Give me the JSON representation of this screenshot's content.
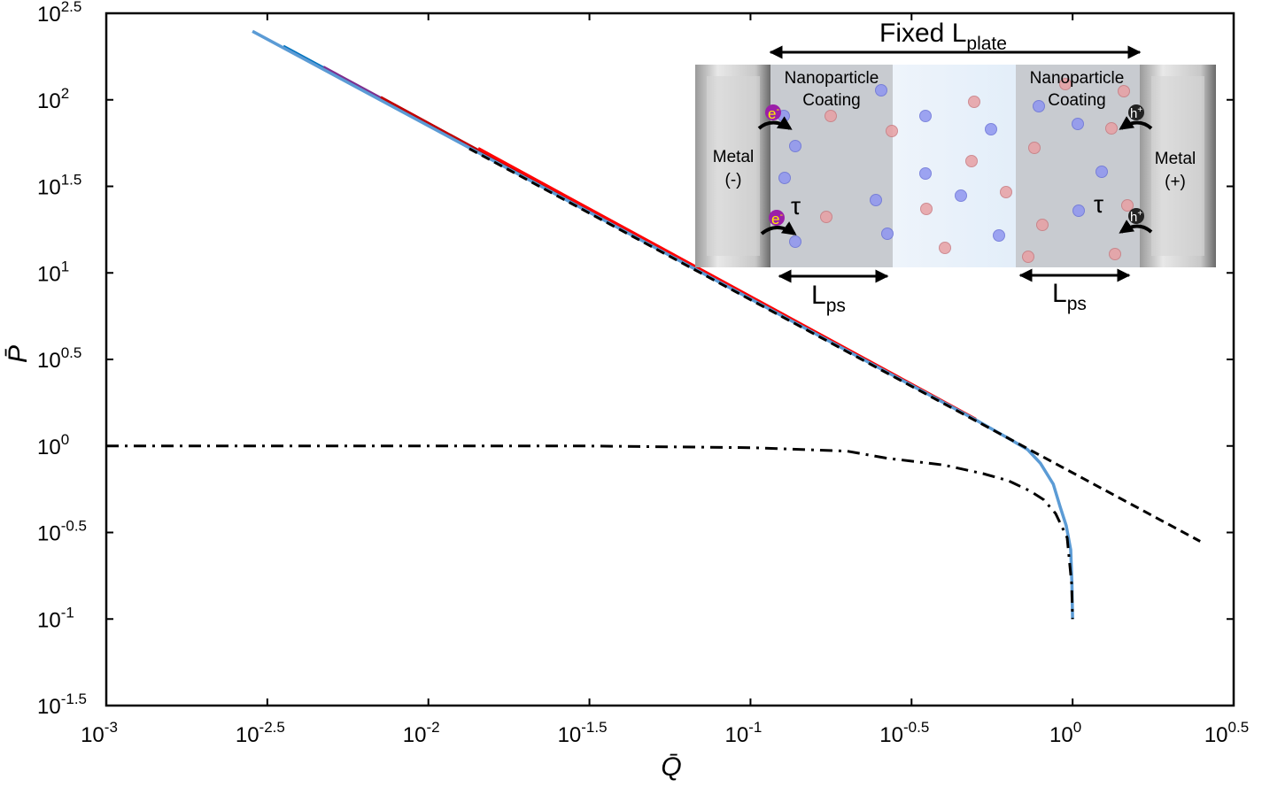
{
  "chart_data": {
    "type": "line",
    "xscale": "log",
    "yscale": "log",
    "xlim_log10": [
      -3,
      0.5
    ],
    "ylim_log10": [
      -1.5,
      2.5
    ],
    "xlabel": "Q̄",
    "ylabel": "P̄",
    "grid": false,
    "x_ticks": [
      {
        "base": "10",
        "exp": "-3",
        "log10": -3
      },
      {
        "base": "10",
        "exp": "-2.5",
        "log10": -2.5
      },
      {
        "base": "10",
        "exp": "-2",
        "log10": -2
      },
      {
        "base": "10",
        "exp": "-1.5",
        "log10": -1.5
      },
      {
        "base": "10",
        "exp": "-1",
        "log10": -1
      },
      {
        "base": "10",
        "exp": "-0.5",
        "log10": -0.5
      },
      {
        "base": "10",
        "exp": "0",
        "log10": 0
      },
      {
        "base": "10",
        "exp": "0.5",
        "log10": 0.5
      }
    ],
    "y_ticks": [
      {
        "base": "10",
        "exp": "-1.5",
        "log10": -1.5
      },
      {
        "base": "10",
        "exp": "-1",
        "log10": -1
      },
      {
        "base": "10",
        "exp": "-0.5",
        "log10": -0.5
      },
      {
        "base": "10",
        "exp": "0",
        "log10": 0
      },
      {
        "base": "10",
        "exp": "0.5",
        "log10": 0.5
      },
      {
        "base": "10",
        "exp": "1",
        "log10": 1
      },
      {
        "base": "10",
        "exp": "1.5",
        "log10": 1.5
      },
      {
        "base": "10",
        "exp": "2",
        "log10": 2
      },
      {
        "base": "10",
        "exp": "2.5",
        "log10": 2.5
      }
    ],
    "series": [
      {
        "color": "#0072bd",
        "style": "solid",
        "log10_points": [
          [
            -2.45,
            2.31
          ],
          [
            -1.5,
            1.36
          ]
        ]
      },
      {
        "color": "#7e2f8e",
        "style": "solid",
        "log10_points": [
          [
            -2.326,
            2.19
          ],
          [
            -1.5,
            1.36
          ]
        ]
      },
      {
        "color": "#c00000",
        "style": "solid",
        "log10_points": [
          [
            -2.148,
            2.015
          ],
          [
            -1.0,
            0.855
          ]
        ]
      },
      {
        "color": "#ff0000",
        "style": "solid",
        "log10_points": [
          [
            -1.845,
            1.72
          ],
          [
            -0.3,
            0.155
          ]
        ]
      },
      {
        "color": "#5b9bd5",
        "style": "solid",
        "log10_points": [
          [
            -2.546,
            2.396
          ],
          [
            -2.0,
            1.85
          ],
          [
            -1.5,
            1.35
          ],
          [
            -1.0,
            0.85
          ],
          [
            -0.5,
            0.35
          ],
          [
            -0.3,
            0.15
          ],
          [
            -0.2,
            0.045
          ],
          [
            -0.14,
            -0.02
          ],
          [
            -0.1,
            -0.1
          ],
          [
            -0.06,
            -0.22
          ],
          [
            -0.039,
            -0.35
          ],
          [
            -0.02,
            -0.46
          ],
          [
            -0.006,
            -0.6
          ],
          [
            -0.002,
            -0.8
          ],
          [
            0,
            -1.0
          ]
        ]
      },
      {
        "color": "#000000",
        "style": "dashed",
        "log10_points": [
          [
            -1.873,
            1.718
          ],
          [
            0.396,
            -0.551
          ]
        ]
      },
      {
        "color": "#000000",
        "style": "dashdot",
        "log10_points": [
          [
            -3,
            0
          ],
          [
            -1.5,
            0
          ],
          [
            -1.0,
            -0.01
          ],
          [
            -0.7,
            -0.03
          ],
          [
            -0.58,
            -0.07
          ],
          [
            -0.4,
            -0.11
          ],
          [
            -0.278,
            -0.16
          ],
          [
            -0.2,
            -0.2
          ],
          [
            -0.132,
            -0.26
          ],
          [
            -0.09,
            -0.31
          ],
          [
            -0.053,
            -0.39
          ],
          [
            -0.017,
            -0.53
          ],
          [
            -0.003,
            -0.8
          ],
          [
            0,
            -1.0
          ]
        ]
      }
    ],
    "inset": {
      "title_main": "Fixed L",
      "title_sub": "plate",
      "left_metal": [
        "Metal",
        "(-)"
      ],
      "right_metal": [
        "Metal",
        "(+)"
      ],
      "coating": [
        "Nanoparticle",
        "Coating"
      ],
      "tau": "τ",
      "lps_main": "L",
      "lps_sub": "ps",
      "electron": "e",
      "electron_sup": "-",
      "hole": "h",
      "hole_sup": "+"
    }
  }
}
